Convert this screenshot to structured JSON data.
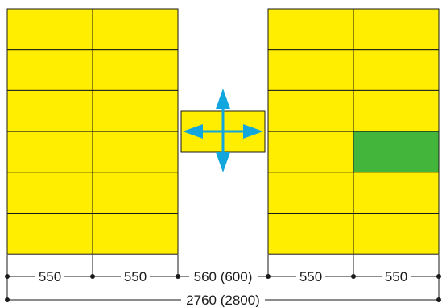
{
  "racks": {
    "left": {
      "rows": 6,
      "cols": 2,
      "color": "#ffee00",
      "highlight": []
    },
    "right": {
      "rows": 6,
      "cols": 2,
      "color": "#ffee00",
      "highlight": [
        [
          3,
          1
        ]
      ]
    }
  },
  "highlight_color": "#44b53b",
  "shuttle": {
    "color": "#ffee00",
    "arrow_color": "#12a6df",
    "icon": "four-way-arrow-icon"
  },
  "dimensions": {
    "segments": [
      "550",
      "550",
      "560 (600)",
      "550",
      "550"
    ],
    "total": "2760 (2800)"
  }
}
